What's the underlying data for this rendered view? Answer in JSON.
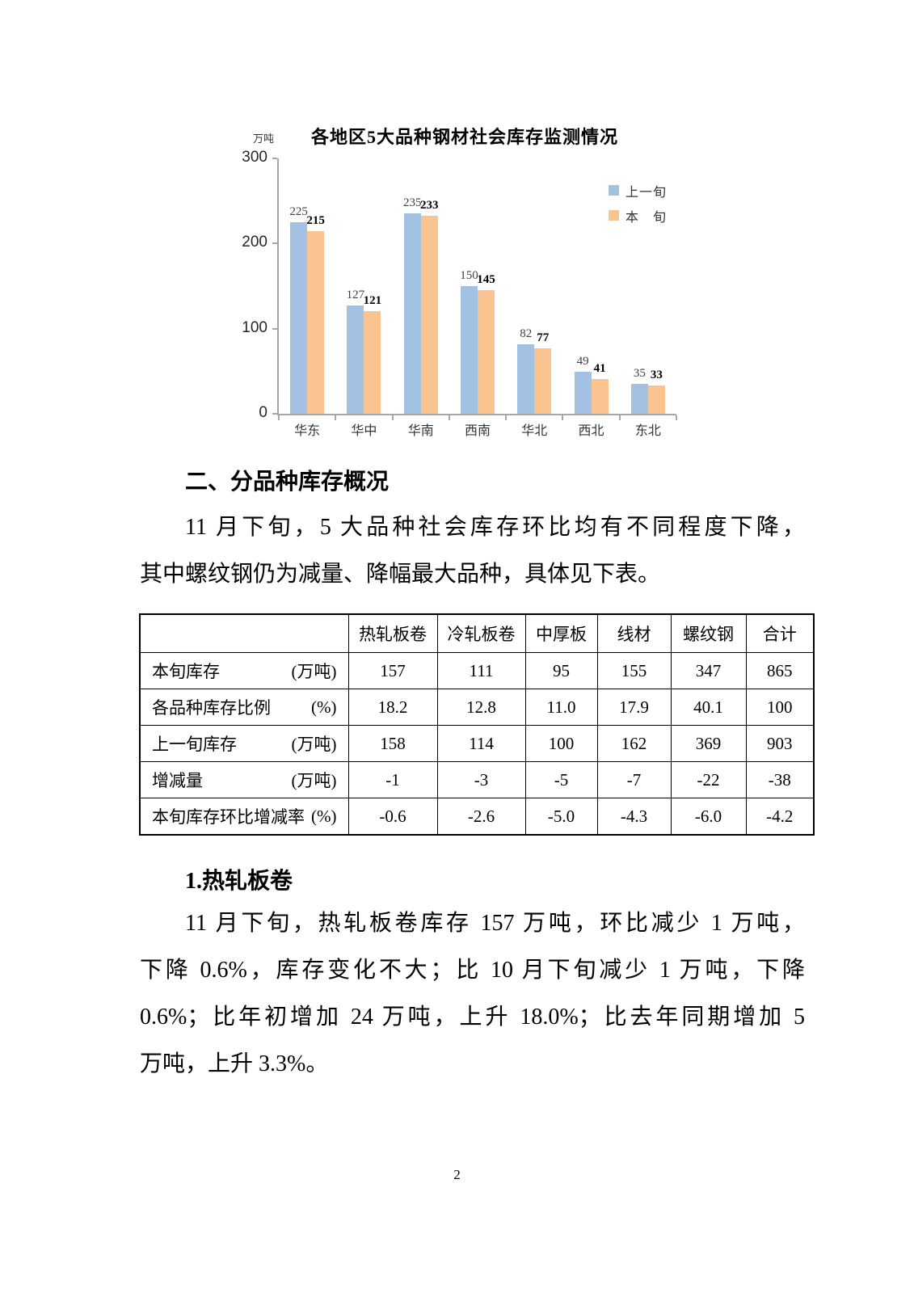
{
  "chart_data": {
    "type": "bar",
    "title": "各地区5大品种钢材社会库存监测情况",
    "ylabel": "万吨",
    "xlabel": "",
    "categories": [
      "华东",
      "华中",
      "华南",
      "西南",
      "华北",
      "西北",
      "东北"
    ],
    "series": [
      {
        "name": "上一旬",
        "legend_label": "上一旬",
        "color": "#a3c1e2",
        "values": [
          225,
          127,
          235,
          150,
          82,
          49,
          35
        ]
      },
      {
        "name": "本旬",
        "legend_label": "本　旬",
        "color": "#f9c48f",
        "values": [
          215,
          121,
          233,
          145,
          77,
          41,
          33
        ]
      }
    ],
    "ylim": [
      0,
      300
    ],
    "yticks": [
      0,
      100,
      200,
      300
    ],
    "grid": false,
    "legend_position": "upper right",
    "bar_value_labels": true
  },
  "table": {
    "header": [
      "",
      "热轧板卷",
      "冷轧板卷",
      "中厚板",
      "线材",
      "螺纹钢",
      "合计"
    ],
    "rows": [
      {
        "label": "本旬库存",
        "unit": "(万吨)",
        "values": [
          "157",
          "111",
          "95",
          "155",
          "347",
          "865"
        ]
      },
      {
        "label": "各品种库存比例",
        "unit": "(%)",
        "values": [
          "18.2",
          "12.8",
          "11.0",
          "17.9",
          "40.1",
          "100"
        ]
      },
      {
        "label": "上一旬库存",
        "unit": "(万吨)",
        "values": [
          "158",
          "114",
          "100",
          "162",
          "369",
          "903"
        ]
      },
      {
        "label": "增减量",
        "unit": "(万吨)",
        "values": [
          "-1",
          "-3",
          "-5",
          "-7",
          "-22",
          "-38"
        ]
      },
      {
        "label": "本旬库存环比增减率",
        "unit": "(%)",
        "values": [
          "-0.6",
          "-2.6",
          "-5.0",
          "-4.3",
          "-6.0",
          "-4.2"
        ]
      }
    ]
  },
  "document": {
    "section_heading": "二、分品种库存概况",
    "section_paragraph_lines": [
      "11 月下旬，5 大品种社会库存环比均有不同程度下降，",
      "其中螺纹钢仍为减量、降幅最大品种，具体见下表。"
    ],
    "subsection_heading": "1.热轧板卷",
    "subsection_paragraph_lines": [
      "11 月下旬，热轧板卷库存 157 万吨，环比减少 1 万吨，",
      "下降 0.6%，库存变化不大；比 10 月下旬减少 1 万吨，下降",
      "0.6%；比年初增加 24 万吨，上升 18.0%；比去年同期增加 5",
      "万吨，上升 3.3%。"
    ],
    "page_number": "2"
  }
}
